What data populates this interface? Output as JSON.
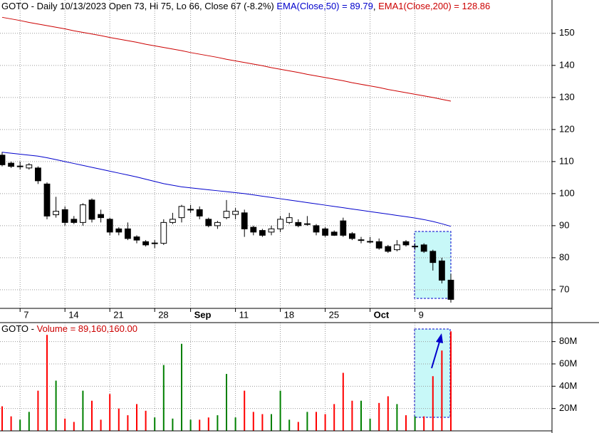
{
  "chart_data": [
    {
      "type": "candlestick",
      "title": "GOTO - Daily 10/13/2023 Open 73, Hi 75, Lo 66, Close 67 (-8.2%)",
      "categories": [
        null,
        null,
        "7",
        null,
        null,
        null,
        null,
        "14",
        null,
        null,
        null,
        null,
        "21",
        null,
        null,
        null,
        null,
        "28",
        null,
        null,
        null,
        "Sep",
        null,
        null,
        null,
        null,
        "11",
        null,
        null,
        null,
        null,
        "18",
        null,
        null,
        null,
        null,
        "25",
        null,
        null,
        null,
        null,
        "Oct",
        null,
        null,
        null,
        null,
        "9",
        null,
        null,
        null,
        null
      ],
      "open": [
        112,
        109.5,
        108.5,
        108,
        108,
        103,
        93.4,
        95,
        92,
        91,
        98,
        93.5,
        92,
        89,
        89,
        86.5,
        85,
        84.5,
        84.5,
        91,
        92.5,
        95,
        95,
        92,
        90,
        92.5,
        93.5,
        94,
        89.5,
        88.5,
        88,
        89,
        91,
        91,
        90.5,
        90,
        89,
        88,
        91.5,
        87.5,
        85.5,
        85,
        85,
        83.5,
        82.5,
        85,
        83.5,
        84,
        82,
        79,
        73
      ],
      "high": [
        113,
        110,
        110,
        109.5,
        108.5,
        103.5,
        99,
        96,
        93,
        97,
        98.5,
        95,
        92.5,
        89.5,
        91,
        87,
        85.5,
        85.5,
        92,
        94,
        96.5,
        96.5,
        96,
        92.5,
        91.5,
        98,
        95.5,
        95,
        90,
        89,
        90,
        93,
        94,
        92,
        93,
        90.5,
        89.5,
        88.5,
        92.5,
        88,
        86.5,
        86.5,
        86,
        84,
        85.5,
        85.5,
        84.5,
        84.5,
        82.5,
        80,
        75
      ],
      "low": [
        108.5,
        108,
        107.5,
        107.5,
        103,
        92,
        92.5,
        90,
        90.5,
        90,
        91,
        91,
        87,
        87,
        85.5,
        84.5,
        83.5,
        83,
        84,
        90.5,
        91,
        94,
        92,
        89.5,
        89,
        92,
        92,
        86.5,
        87,
        86.5,
        87,
        88,
        90.5,
        89.5,
        90,
        87,
        86.5,
        86.8,
        86.5,
        85.5,
        84.5,
        84.5,
        82.5,
        81.5,
        82,
        83.5,
        82.5,
        81.5,
        76,
        72,
        66
      ],
      "close": [
        109,
        108.5,
        108.6,
        109,
        104,
        93,
        94.5,
        91,
        91,
        96.5,
        92,
        92.5,
        88,
        88,
        86,
        85.5,
        84,
        84.6,
        91,
        92,
        96,
        95.1,
        93,
        90,
        91,
        94.5,
        94.5,
        89,
        88,
        87,
        89,
        92,
        92.5,
        90,
        90.6,
        88,
        87,
        87,
        87,
        86,
        85.6,
        85.1,
        83,
        82,
        84,
        84,
        83.6,
        82,
        78.5,
        73,
        67
      ],
      "up_color": "#ffffff",
      "down_color": "#000000",
      "series": [
        {
          "name": "EMA(Close,50) = 89.79",
          "color": "#0000cc",
          "values": [
            112.9,
            112.6,
            112.3,
            112.0,
            111.7,
            111.2,
            110.6,
            110.0,
            109.4,
            108.8,
            108.2,
            107.6,
            107.0,
            106.4,
            105.8,
            105.2,
            104.5,
            103.8,
            103.1,
            102.6,
            102.1,
            101.8,
            101.5,
            101.2,
            100.9,
            100.6,
            100.3,
            100.0,
            99.6,
            99.2,
            98.8,
            98.4,
            98.0,
            97.6,
            97.2,
            96.8,
            96.4,
            96.0,
            95.6,
            95.2,
            94.8,
            94.4,
            94.0,
            93.6,
            93.2,
            92.8,
            92.4,
            91.9,
            91.3,
            90.6,
            89.79
          ]
        },
        {
          "name": "EMA1(Close,200) = 128.86",
          "color": "#cc0000",
          "values": [
            155.0,
            154.5,
            154.0,
            153.4,
            152.9,
            152.4,
            151.9,
            151.4,
            150.8,
            150.3,
            149.8,
            149.3,
            148.7,
            148.2,
            147.7,
            147.2,
            146.6,
            146.1,
            145.6,
            145.1,
            144.6,
            144.0,
            143.5,
            143.0,
            142.5,
            141.9,
            141.4,
            140.9,
            140.4,
            139.9,
            139.3,
            138.8,
            138.3,
            137.8,
            137.2,
            136.7,
            136.2,
            135.7,
            135.2,
            134.6,
            134.1,
            133.6,
            133.1,
            132.5,
            132.0,
            131.5,
            131.0,
            130.5,
            130.0,
            129.4,
            128.86
          ]
        }
      ],
      "ylim": [
        64.2,
        160.4
      ],
      "yticks": [
        70,
        80,
        90,
        100,
        110,
        120,
        130,
        140,
        150
      ],
      "grid": true
    },
    {
      "type": "bar",
      "title": "GOTO -",
      "series": [
        {
          "name": "Volume = 89,160,160.00",
          "color": "#ff0000",
          "values": [
            22,
            13,
            10,
            17,
            36,
            86,
            45,
            11,
            8,
            36,
            27,
            10,
            33,
            20,
            14,
            24,
            18,
            12,
            59,
            11,
            78,
            10,
            10,
            12,
            14,
            51,
            12,
            36,
            17,
            15,
            15,
            36,
            10,
            8,
            17,
            17,
            15,
            24,
            52,
            27,
            27,
            11,
            25,
            31,
            24,
            14,
            13,
            13,
            49,
            72,
            89.16
          ]
        }
      ],
      "up_color": "#008000",
      "ylim": [
        0,
        97
      ],
      "yticks": [
        {
          "value": 20,
          "label": "20M"
        },
        {
          "value": 40,
          "label": "40M"
        },
        {
          "value": 60,
          "label": "60M"
        },
        {
          "value": 80,
          "label": "80M"
        }
      ],
      "grid": true
    }
  ]
}
